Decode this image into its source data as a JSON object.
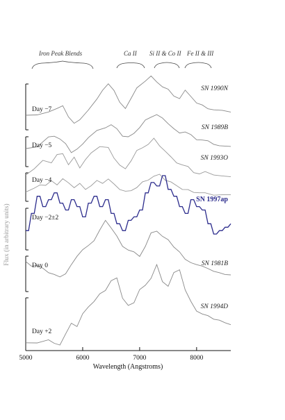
{
  "chart_data": {
    "type": "line",
    "xlabel": "Wavelength (Angstroms)",
    "ylabel": "Flux (in arbitrary units)",
    "xlim": [
      5000,
      8600
    ],
    "xticks": [
      5000,
      6000,
      7000,
      8000
    ],
    "feature_labels": [
      "Iron Peak Blends",
      "Ca II",
      "Si II & Co II",
      "Fe II & III"
    ],
    "series": [
      {
        "name": "SN 1990N",
        "day": "Day −7",
        "color": "#888888",
        "highlight": false,
        "x": [
          5000,
          5200,
          5400,
          5550,
          5650,
          5750,
          5850,
          5950,
          6100,
          6250,
          6350,
          6450,
          6550,
          6650,
          6750,
          6850,
          6950,
          7100,
          7200,
          7300,
          7400,
          7500,
          7600,
          7700,
          7800,
          7900,
          8000,
          8100,
          8200,
          8300,
          8450,
          8600
        ],
        "y": [
          0.2,
          0.22,
          0.25,
          0.35,
          0.4,
          0.15,
          0.05,
          0.1,
          0.3,
          0.55,
          0.7,
          0.85,
          0.72,
          0.45,
          0.35,
          0.55,
          0.75,
          0.92,
          1.0,
          0.88,
          0.8,
          0.72,
          0.6,
          0.55,
          0.7,
          0.6,
          0.45,
          0.4,
          0.35,
          0.3,
          0.3,
          0.28
        ]
      },
      {
        "name": "SN 1989B",
        "day": "",
        "color": "#888888",
        "highlight": false,
        "x": [
          5000,
          5200,
          5400,
          5500,
          5600,
          5700,
          5800,
          5900,
          6000,
          6100,
          6250,
          6400,
          6500,
          6600,
          6700,
          6800,
          6900,
          7000,
          7100,
          7200,
          7300,
          7400,
          7500,
          7600,
          7700,
          7800,
          7900,
          8000,
          8100,
          8200,
          8300,
          8400,
          8600
        ],
        "y": [
          0.2,
          0.22,
          0.45,
          0.5,
          0.4,
          0.3,
          0.1,
          0.15,
          0.3,
          0.45,
          0.6,
          0.7,
          0.75,
          0.65,
          0.5,
          0.45,
          0.55,
          0.7,
          0.85,
          0.95,
          1.0,
          0.9,
          0.8,
          0.65,
          0.55,
          0.6,
          0.5,
          0.4,
          0.4,
          0.35,
          0.3,
          0.25,
          0.22
        ]
      },
      {
        "name": "SN 1993O",
        "day": "Day −5",
        "color": "#999999",
        "highlight": false,
        "x": [
          5000,
          5150,
          5300,
          5450,
          5550,
          5650,
          5750,
          5850,
          5950,
          6050,
          6150,
          6300,
          6450,
          6550,
          6650,
          6750,
          6850,
          6950,
          7050,
          7150,
          7250,
          7350,
          7450,
          7550,
          7650,
          7750,
          7850,
          7950,
          8050,
          8150,
          8300,
          8450,
          8600
        ],
        "y": [
          0.25,
          0.35,
          0.55,
          0.5,
          0.65,
          0.7,
          0.45,
          0.6,
          0.4,
          0.55,
          0.7,
          0.85,
          0.8,
          0.6,
          0.45,
          0.35,
          0.55,
          0.75,
          0.8,
          0.9,
          1.0,
          0.85,
          0.75,
          0.6,
          0.5,
          0.45,
          0.4,
          0.3,
          0.25,
          0.3,
          0.25,
          0.2,
          0.2
        ]
      },
      {
        "name": "",
        "day": "Day −4",
        "color": "#999999",
        "highlight": false,
        "x": [
          5000,
          5150,
          5250,
          5350,
          5450,
          5550,
          5650,
          5750,
          5850,
          5950,
          6050,
          6150,
          6250,
          6350,
          6450,
          6550,
          6650,
          6750,
          6850,
          6950,
          7050,
          7150,
          7250,
          7350,
          7450,
          7550,
          7650,
          7750,
          7850,
          7950,
          8050,
          8150,
          8300,
          8450,
          8600
        ],
        "y": [
          0.3,
          0.4,
          0.55,
          0.5,
          0.65,
          0.55,
          0.7,
          0.6,
          0.45,
          0.55,
          0.4,
          0.5,
          0.65,
          0.6,
          0.7,
          0.55,
          0.4,
          0.3,
          0.35,
          0.45,
          0.6,
          0.7,
          0.8,
          0.85,
          0.7,
          0.6,
          0.5,
          0.4,
          0.35,
          0.3,
          0.28,
          0.25,
          0.22,
          0.2,
          0.2
        ]
      },
      {
        "name": "SN 1997ap",
        "day": "Day −2±2",
        "color": "#2b2b8c",
        "highlight": true,
        "x": [
          5000,
          5100,
          5200,
          5300,
          5400,
          5500,
          5600,
          5700,
          5800,
          5900,
          6000,
          6100,
          6200,
          6300,
          6400,
          6500,
          6600,
          6700,
          6800,
          6900,
          7000,
          7100,
          7200,
          7300,
          7400,
          7500,
          7600,
          7700,
          7800,
          7900,
          8000,
          8100,
          8200,
          8300,
          8400,
          8500,
          8600
        ],
        "y": [
          0.2,
          0.45,
          0.7,
          0.55,
          0.65,
          0.75,
          0.6,
          0.5,
          0.65,
          0.55,
          0.4,
          0.6,
          0.7,
          0.55,
          0.65,
          0.45,
          0.3,
          0.2,
          0.35,
          0.4,
          0.5,
          0.75,
          0.9,
          0.85,
          1.0,
          0.8,
          0.7,
          0.55,
          0.45,
          0.65,
          0.55,
          0.5,
          0.3,
          0.15,
          0.2,
          0.25,
          0.3
        ]
      },
      {
        "name": "SN 1981B",
        "day": "Day 0",
        "color": "#888888",
        "highlight": false,
        "x": [
          5000,
          5100,
          5200,
          5300,
          5400,
          5500,
          5600,
          5700,
          5800,
          5900,
          6000,
          6100,
          6200,
          6300,
          6400,
          6500,
          6600,
          6700,
          6800,
          6900,
          7000,
          7100,
          7200,
          7300,
          7400,
          7500,
          7600,
          7700,
          7800,
          7900,
          8000,
          8100,
          8200,
          8300,
          8400,
          8500,
          8600
        ],
        "y": [
          0.35,
          0.3,
          0.3,
          0.25,
          0.2,
          0.15,
          0.12,
          0.18,
          0.3,
          0.45,
          0.55,
          0.6,
          0.7,
          0.85,
          1.0,
          0.9,
          0.75,
          0.6,
          0.55,
          0.5,
          0.45,
          0.6,
          0.8,
          0.85,
          0.75,
          0.7,
          0.6,
          0.5,
          0.4,
          0.35,
          0.3,
          0.3,
          0.25,
          0.2,
          0.2,
          0.15,
          0.15
        ]
      },
      {
        "name": "SN 1994D",
        "day": "Day +2",
        "color": "#888888",
        "highlight": false,
        "x": [
          5000,
          5200,
          5400,
          5500,
          5600,
          5700,
          5800,
          5900,
          6000,
          6100,
          6200,
          6300,
          6400,
          6500,
          6600,
          6700,
          6800,
          6900,
          7000,
          7100,
          7200,
          7300,
          7400,
          7500,
          7600,
          7700,
          7800,
          7900,
          8000,
          8100,
          8200,
          8300,
          8400,
          8500,
          8600
        ],
        "y": [
          0.05,
          0.06,
          0.08,
          0.05,
          0.03,
          0.15,
          0.3,
          0.25,
          0.4,
          0.5,
          0.55,
          0.65,
          0.7,
          0.8,
          0.85,
          0.6,
          0.5,
          0.55,
          0.7,
          0.75,
          0.85,
          1.0,
          0.8,
          0.75,
          0.9,
          0.95,
          0.7,
          0.55,
          0.45,
          0.4,
          0.38,
          0.35,
          0.32,
          0.3,
          0.28
        ]
      }
    ]
  }
}
